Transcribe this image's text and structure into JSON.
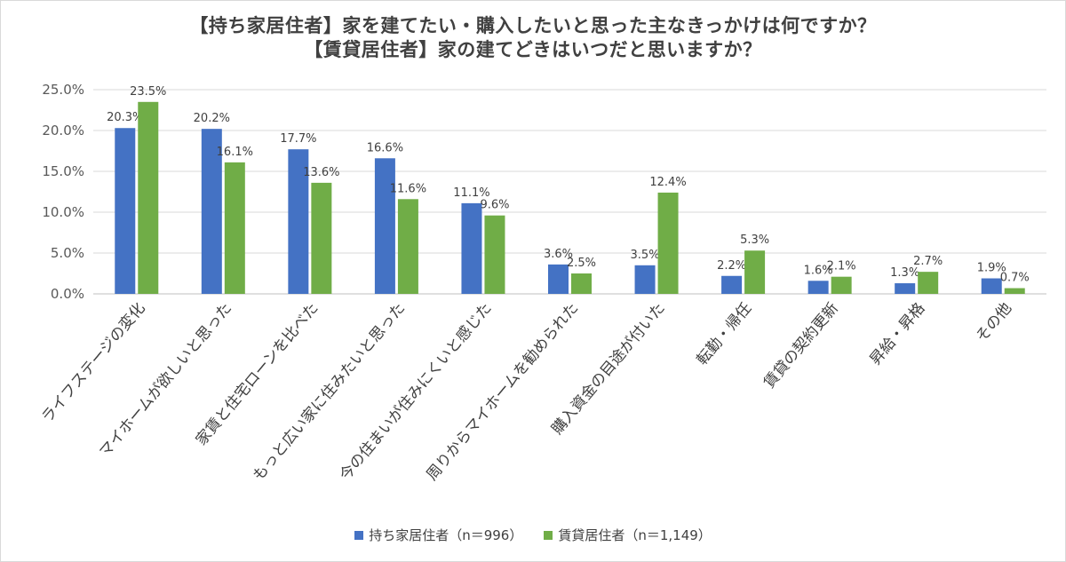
{
  "chart_data": {
    "type": "bar",
    "title": [
      "【持ち家居住者】家を建てたい・購入したいと思った主なきっかけは何ですか？",
      "【賃貸居住者】家の建てどきはいつだと思いますか？"
    ],
    "categories": [
      "ライフステージの変化",
      "マイホームが欲しいと思った",
      "家賃と住宅ローンを比べた",
      "もっと広い家に住みたいと思った",
      "今の住まいが住みにくいと感じた",
      "周りからマイホームを勧められた",
      "購入資金の目途が付いた",
      "転勤・帰任",
      "賃貸の契約更新",
      "昇給・昇格",
      "その他"
    ],
    "series": [
      {
        "name": "持ち家居住者（n＝996）",
        "color": "#4472C4",
        "values": [
          20.3,
          20.2,
          17.7,
          16.6,
          11.1,
          3.6,
          3.5,
          2.2,
          1.6,
          1.3,
          1.9
        ]
      },
      {
        "name": "賃貸居住者（n＝1,149）",
        "color": "#70AD47",
        "values": [
          23.5,
          16.1,
          13.6,
          11.6,
          9.6,
          2.5,
          12.4,
          5.3,
          2.1,
          2.7,
          0.7
        ]
      }
    ],
    "ylim": [
      0,
      25
    ],
    "yticks": [
      0,
      5,
      10,
      15,
      20,
      25
    ],
    "ytick_labels": [
      "0.0%",
      "5.0%",
      "10.0%",
      "15.0%",
      "20.0%",
      "25.0%"
    ],
    "xlabel": "",
    "ylabel": "",
    "grid": true,
    "legend_position": "bottom"
  }
}
